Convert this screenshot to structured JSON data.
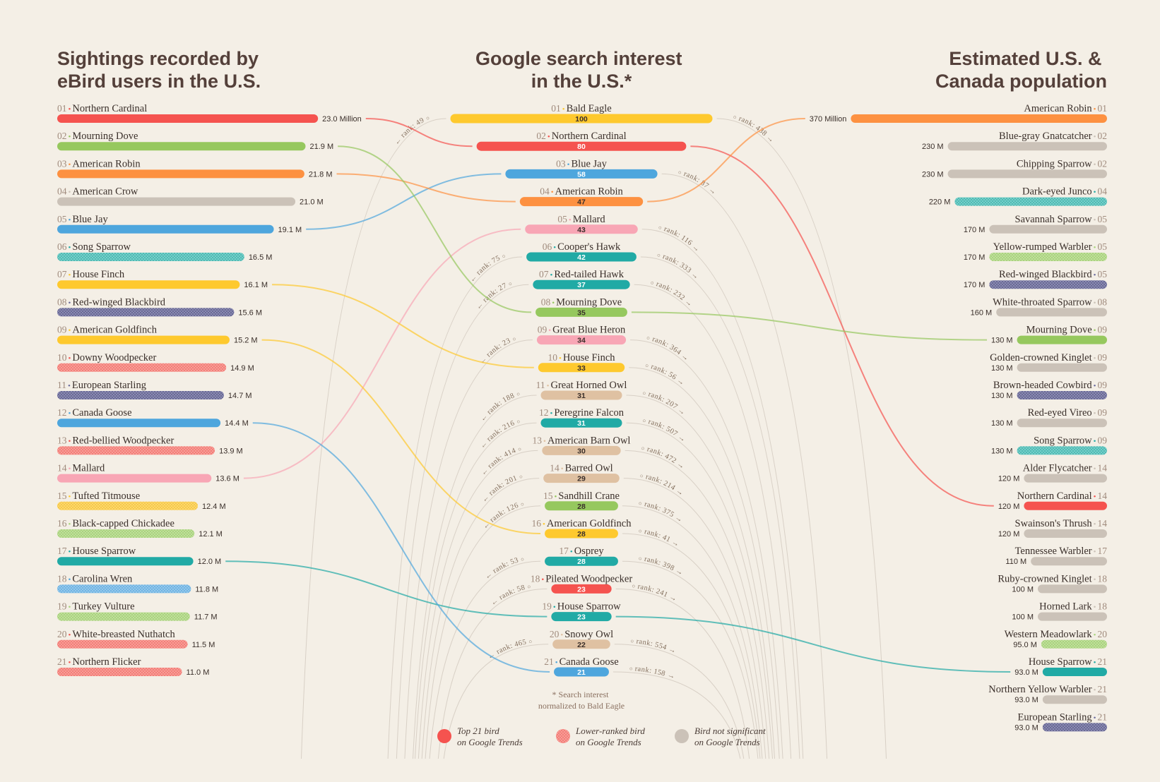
{
  "palette": {
    "background": "#f4efe6",
    "solid": {
      "red": "#f5534f",
      "green": "#96c85e",
      "orange": "#fd9141",
      "grey": "#cbc2b8",
      "blue": "#4ea6dd",
      "teal": "#21aaa5",
      "yellow": "#fec92e",
      "pink": "#f8a6b5",
      "tan": "#dfc1a2",
      "navy": "#6b6b9c",
      "lightgreen": "#a8d57c"
    },
    "dotted": {
      "red": [
        "#f89d97",
        "#ef6a64"
      ],
      "teal": [
        "#74d0ca",
        "#3aa8a2"
      ],
      "navy": [
        "#8a8ab3",
        "#52527d"
      ],
      "yellow": [
        "#fdd86a",
        "#f0bd3a"
      ],
      "lightgreen": [
        "#bfe09a",
        "#9cc86e"
      ],
      "blue": [
        "#93c8ec",
        "#5aa6dc"
      ]
    },
    "light_text_on": [
      "red",
      "blue",
      "teal"
    ]
  },
  "chart_data": [
    {
      "type": "bar",
      "orientation": "horizontal",
      "title": [
        "Sightings recorded by",
        "eBird users in the U.S."
      ],
      "items": [
        {
          "rank": "01",
          "name": "Northern Cardinal",
          "value": 23.0,
          "label": "23.0 Million",
          "color": "red",
          "style": "solid"
        },
        {
          "rank": "02",
          "name": "Mourning Dove",
          "value": 21.9,
          "label": "21.9 M",
          "color": "green",
          "style": "solid"
        },
        {
          "rank": "03",
          "name": "American Robin",
          "value": 21.8,
          "label": "21.8 M",
          "color": "orange",
          "style": "solid"
        },
        {
          "rank": "04",
          "name": "American Crow",
          "value": 21.0,
          "label": "21.0 M",
          "color": "grey",
          "style": "solid"
        },
        {
          "rank": "05",
          "name": "Blue Jay",
          "value": 19.1,
          "label": "19.1 M",
          "color": "blue",
          "style": "solid"
        },
        {
          "rank": "06",
          "name": "Song Sparrow",
          "value": 16.5,
          "label": "16.5 M",
          "color": "teal",
          "style": "dotted"
        },
        {
          "rank": "07",
          "name": "House Finch",
          "value": 16.1,
          "label": "16.1 M",
          "color": "yellow",
          "style": "solid"
        },
        {
          "rank": "08",
          "name": "Red-winged Blackbird",
          "value": 15.6,
          "label": "15.6 M",
          "color": "navy",
          "style": "dotted"
        },
        {
          "rank": "09",
          "name": "American Goldfinch",
          "value": 15.2,
          "label": "15.2 M",
          "color": "yellow",
          "style": "solid"
        },
        {
          "rank": "10",
          "name": "Downy Woodpecker",
          "value": 14.9,
          "label": "14.9 M",
          "color": "red",
          "style": "dotted"
        },
        {
          "rank": "11",
          "name": "European Starling",
          "value": 14.7,
          "label": "14.7 M",
          "color": "navy",
          "style": "dotted"
        },
        {
          "rank": "12",
          "name": "Canada Goose",
          "value": 14.4,
          "label": "14.4 M",
          "color": "blue",
          "style": "solid"
        },
        {
          "rank": "13",
          "name": "Red-bellied Woodpecker",
          "value": 13.9,
          "label": "13.9 M",
          "color": "red",
          "style": "dotted"
        },
        {
          "rank": "14",
          "name": "Mallard",
          "value": 13.6,
          "label": "13.6 M",
          "color": "pink",
          "style": "solid"
        },
        {
          "rank": "15",
          "name": "Tufted Titmouse",
          "value": 12.4,
          "label": "12.4 M",
          "color": "yellow",
          "style": "dotted"
        },
        {
          "rank": "16",
          "name": "Black-capped Chickadee",
          "value": 12.1,
          "label": "12.1 M",
          "color": "lightgreen",
          "style": "dotted"
        },
        {
          "rank": "17",
          "name": "House Sparrow",
          "value": 12.0,
          "label": "12.0 M",
          "color": "teal",
          "style": "solid"
        },
        {
          "rank": "18",
          "name": "Carolina Wren",
          "value": 11.8,
          "label": "11.8 M",
          "color": "blue",
          "style": "dotted"
        },
        {
          "rank": "19",
          "name": "Turkey Vulture",
          "value": 11.7,
          "label": "11.7 M",
          "color": "lightgreen",
          "style": "dotted"
        },
        {
          "rank": "20",
          "name": "White-breasted Nuthatch",
          "value": 11.5,
          "label": "11.5 M",
          "color": "red",
          "style": "dotted"
        },
        {
          "rank": "21",
          "name": "Northern Flicker",
          "value": 11.0,
          "label": "11.0 M",
          "color": "red",
          "style": "dotted"
        }
      ]
    },
    {
      "type": "bar",
      "orientation": "horizontal-centered",
      "title": [
        "Google search interest",
        "in the U.S.*"
      ],
      "items": [
        {
          "rank": "01",
          "name": "Bald Eagle",
          "value": 100,
          "label": "100",
          "color": "yellow",
          "sightings_rank": "rank: 49",
          "population_rank": "rank: 438"
        },
        {
          "rank": "02",
          "name": "Northern Cardinal",
          "value": 80,
          "label": "80",
          "color": "red"
        },
        {
          "rank": "03",
          "name": "Blue Jay",
          "value": 58,
          "label": "58",
          "color": "blue",
          "population_rank": "rank: 87"
        },
        {
          "rank": "04",
          "name": "American Robin",
          "value": 47,
          "label": "47",
          "color": "orange"
        },
        {
          "rank": "05",
          "name": "Mallard",
          "value": 43,
          "label": "43",
          "color": "pink",
          "population_rank": "rank: 116"
        },
        {
          "rank": "06",
          "name": "Cooper's Hawk",
          "value": 42,
          "label": "42",
          "color": "teal",
          "sightings_rank": "rank: 75",
          "population_rank": "rank: 333"
        },
        {
          "rank": "07",
          "name": "Red-tailed Hawk",
          "value": 37,
          "label": "37",
          "color": "teal",
          "sightings_rank": "rank: 27",
          "population_rank": "rank: 232"
        },
        {
          "rank": "08",
          "name": "Mourning Dove",
          "value": 35,
          "label": "35",
          "color": "green"
        },
        {
          "rank": "09",
          "name": "Great Blue Heron",
          "value": 34,
          "label": "34",
          "color": "pink",
          "sightings_rank": "rank: 23",
          "population_rank": "rank: 364"
        },
        {
          "rank": "10",
          "name": "House Finch",
          "value": 33,
          "label": "33",
          "color": "yellow",
          "population_rank": "rank: 56"
        },
        {
          "rank": "11",
          "name": "Great Horned Owl",
          "value": 31,
          "label": "31",
          "color": "tan",
          "sightings_rank": "rank: 188",
          "population_rank": "rank: 207"
        },
        {
          "rank": "12",
          "name": "Peregrine Falcon",
          "value": 31,
          "label": "31",
          "color": "teal",
          "sightings_rank": "rank: 216",
          "population_rank": "rank: 507"
        },
        {
          "rank": "13",
          "name": "American Barn Owl",
          "value": 30,
          "label": "30",
          "color": "tan",
          "sightings_rank": "rank: 414",
          "population_rank": "rank: 472"
        },
        {
          "rank": "14",
          "name": "Barred Owl",
          "value": 29,
          "label": "29",
          "color": "tan",
          "sightings_rank": "rank: 201",
          "population_rank": "rank: 214"
        },
        {
          "rank": "15",
          "name": "Sandhill Crane",
          "value": 28,
          "label": "28",
          "color": "green",
          "sightings_rank": "rank: 126",
          "population_rank": "rank: 375"
        },
        {
          "rank": "16",
          "name": "American Goldfinch",
          "value": 28,
          "label": "28",
          "color": "yellow",
          "population_rank": "rank: 41"
        },
        {
          "rank": "17",
          "name": "Osprey",
          "value": 28,
          "label": "28",
          "color": "teal",
          "sightings_rank": "rank: 53",
          "population_rank": "rank: 398"
        },
        {
          "rank": "18",
          "name": "Pileated Woodpecker",
          "value": 23,
          "label": "23",
          "color": "red",
          "sightings_rank": "rank: 58",
          "population_rank": "rank: 241"
        },
        {
          "rank": "19",
          "name": "House Sparrow",
          "value": 23,
          "label": "23",
          "color": "teal"
        },
        {
          "rank": "20",
          "name": "Snowy Owl",
          "value": 22,
          "label": "22",
          "color": "tan",
          "sightings_rank": "rank: 465",
          "population_rank": "rank: 554"
        },
        {
          "rank": "21",
          "name": "Canada Goose",
          "value": 21,
          "label": "21",
          "color": "blue",
          "population_rank": "rank: 158"
        }
      ]
    },
    {
      "type": "bar",
      "orientation": "horizontal-right",
      "title": [
        "Estimated U.S. &",
        "Canada population"
      ],
      "items": [
        {
          "rank": "01",
          "name": "American Robin",
          "value": 370,
          "label": "370 Million",
          "color": "orange",
          "style": "solid"
        },
        {
          "rank": "02",
          "name": "Blue-gray Gnatcatcher",
          "value": 230,
          "label": "230 M",
          "color": "grey",
          "style": "solid"
        },
        {
          "rank": "02",
          "name": "Chipping Sparrow",
          "value": 230,
          "label": "230 M",
          "color": "grey",
          "style": "solid"
        },
        {
          "rank": "04",
          "name": "Dark-eyed Junco",
          "value": 220,
          "label": "220 M",
          "color": "teal",
          "style": "dotted"
        },
        {
          "rank": "05",
          "name": "Savannah Sparrow",
          "value": 170,
          "label": "170 M",
          "color": "grey",
          "style": "solid"
        },
        {
          "rank": "05",
          "name": "Yellow-rumped Warbler",
          "value": 170,
          "label": "170 M",
          "color": "lightgreen",
          "style": "dotted"
        },
        {
          "rank": "05",
          "name": "Red-winged Blackbird",
          "value": 170,
          "label": "170 M",
          "color": "navy",
          "style": "dotted"
        },
        {
          "rank": "08",
          "name": "White-throated Sparrow",
          "value": 160,
          "label": "160 M",
          "color": "grey",
          "style": "solid"
        },
        {
          "rank": "09",
          "name": "Mourning Dove",
          "value": 130,
          "label": "130 M",
          "color": "green",
          "style": "solid"
        },
        {
          "rank": "09",
          "name": "Golden-crowned Kinglet",
          "value": 130,
          "label": "130 M",
          "color": "grey",
          "style": "solid"
        },
        {
          "rank": "09",
          "name": "Brown-headed Cowbird",
          "value": 130,
          "label": "130 M",
          "color": "navy",
          "style": "dotted"
        },
        {
          "rank": "09",
          "name": "Red-eyed Vireo",
          "value": 130,
          "label": "130 M",
          "color": "grey",
          "style": "solid"
        },
        {
          "rank": "09",
          "name": "Song Sparrow",
          "value": 130,
          "label": "130 M",
          "color": "teal",
          "style": "dotted"
        },
        {
          "rank": "14",
          "name": "Alder Flycatcher",
          "value": 120,
          "label": "120 M",
          "color": "grey",
          "style": "solid"
        },
        {
          "rank": "14",
          "name": "Northern Cardinal",
          "value": 120,
          "label": "120 M",
          "color": "red",
          "style": "solid"
        },
        {
          "rank": "14",
          "name": "Swainson's Thrush",
          "value": 120,
          "label": "120 M",
          "color": "grey",
          "style": "solid"
        },
        {
          "rank": "17",
          "name": "Tennessee Warbler",
          "value": 110,
          "label": "110 M",
          "color": "grey",
          "style": "solid"
        },
        {
          "rank": "18",
          "name": "Ruby-crowned Kinglet",
          "value": 100,
          "label": "100 M",
          "color": "grey",
          "style": "solid"
        },
        {
          "rank": "18",
          "name": "Horned Lark",
          "value": 100,
          "label": "100 M",
          "color": "grey",
          "style": "solid"
        },
        {
          "rank": "20",
          "name": "Western Meadowlark",
          "value": 95.0,
          "label": "95.0 M",
          "color": "lightgreen",
          "style": "dotted"
        },
        {
          "rank": "21",
          "name": "House Sparrow",
          "value": 93.0,
          "label": "93.0 M",
          "color": "teal",
          "style": "solid"
        },
        {
          "rank": "21",
          "name": "Northern Yellow Warbler",
          "value": 93.0,
          "label": "93.0 M",
          "color": "grey",
          "style": "solid"
        },
        {
          "rank": "21",
          "name": "European Starling",
          "value": 93.0,
          "label": "93.0 M",
          "color": "navy",
          "style": "dotted"
        }
      ]
    }
  ],
  "footnote": [
    "* Search interest",
    "normalized to Bald Eagle"
  ],
  "legend": [
    {
      "label": [
        "Top 21 bird",
        "on Google Trends"
      ],
      "color": "red",
      "style": "solid"
    },
    {
      "label": [
        "Lower-ranked bird",
        "on Google Trends"
      ],
      "color": "red",
      "style": "dotted"
    },
    {
      "label": [
        "Bird not significant",
        "on Google Trends"
      ],
      "color": "grey",
      "style": "solid"
    }
  ],
  "icons": {
    "dot": "•",
    "arrow_left": "←",
    "arrow_right": "→",
    "ring": "○"
  }
}
